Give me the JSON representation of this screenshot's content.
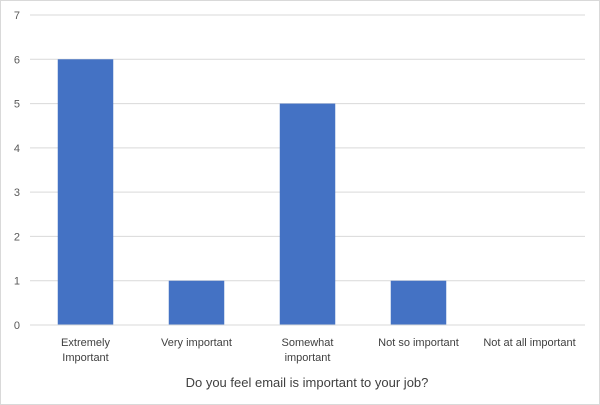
{
  "chart_data": {
    "type": "bar",
    "categories": [
      [
        "Extremely",
        "Important"
      ],
      [
        "Very important"
      ],
      [
        "Somewhat",
        "important"
      ],
      [
        "Not so important"
      ],
      [
        "Not at all important"
      ]
    ],
    "values": [
      6,
      1,
      5,
      1,
      0
    ],
    "xlabel": "Do you feel email is important to your job?",
    "ylabel": "",
    "ylim": [
      0,
      7
    ],
    "yticks": [
      0,
      1,
      2,
      3,
      4,
      5,
      6,
      7
    ],
    "grid": true,
    "bar_color": "#4472C4",
    "grid_color": "#d9d9d9"
  }
}
